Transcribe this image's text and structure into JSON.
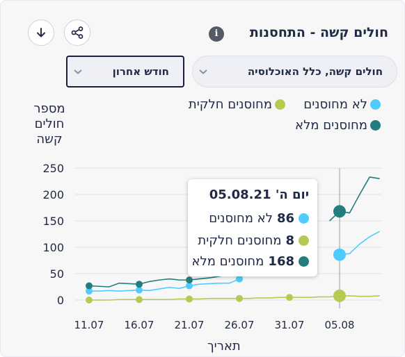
{
  "header": {
    "title": "חולים קשה - התחסנות",
    "info_glyph": "i"
  },
  "filters": {
    "population_label": "חולים קשה, כלל האוכלוסיה",
    "period_label": "חודש אחרון"
  },
  "colors": {
    "unvaccinated": "#50cbfd",
    "partial": "#b6ca51",
    "full": "#237d7d",
    "text": "#222b45",
    "grid": "#dfe1e8"
  },
  "tooltip": {
    "date": "יום ה' 05.08.21",
    "rows": [
      {
        "value": "86",
        "label": "לא מחוסנים"
      },
      {
        "value": "8",
        "label": "מחוסנים חלקית"
      },
      {
        "value": "168",
        "label": "מחוסנים מלא"
      }
    ]
  },
  "chart_data": {
    "type": "line",
    "xlabel": "תאריך",
    "ylabel": "מספר חולים קשה",
    "ylim": [
      0,
      250
    ],
    "yticks": [
      0,
      50,
      100,
      150,
      200,
      250
    ],
    "x": [
      "10.07",
      "11.07",
      "12.07",
      "13.07",
      "14.07",
      "15.07",
      "16.07",
      "17.07",
      "18.07",
      "19.07",
      "20.07",
      "21.07",
      "22.07",
      "23.07",
      "24.07",
      "25.07",
      "26.07",
      "27.07",
      "28.07",
      "29.07",
      "30.07",
      "31.07",
      "01.08",
      "02.08",
      "03.08",
      "04.08",
      "05.08",
      "06.08",
      "07.08",
      "08.08",
      "09.08"
    ],
    "xtick_labels": [
      "11.07",
      "16.07",
      "21.07",
      "26.07",
      "31.07",
      "05.08"
    ],
    "series": [
      {
        "name": "לא מחוסנים",
        "key": "unvaccinated",
        "values": [
          null,
          17,
          17,
          18,
          17,
          18,
          19,
          18,
          21,
          24,
          22,
          27,
          30,
          31,
          32,
          32,
          40,
          null,
          null,
          null,
          null,
          null,
          null,
          null,
          null,
          null,
          86,
          88,
          106,
          120,
          130
        ]
      },
      {
        "name": "מחוסנים חלקית",
        "key": "partial",
        "values": [
          null,
          0,
          0,
          0,
          1,
          1,
          1,
          1,
          1,
          1,
          2,
          2,
          2,
          3,
          3,
          3,
          3,
          3,
          4,
          4,
          5,
          5,
          5,
          5,
          6,
          6,
          8,
          8,
          7,
          7,
          8
        ]
      },
      {
        "name": "מחוסנים מלא",
        "key": "full",
        "values": [
          null,
          27,
          26,
          25,
          32,
          31,
          30,
          35,
          38,
          40,
          38,
          38,
          40,
          42,
          45,
          48,
          52,
          null,
          null,
          null,
          null,
          null,
          null,
          null,
          null,
          150,
          168,
          165,
          200,
          233,
          230
        ]
      }
    ],
    "highlight_x": "05.08",
    "legend": "top",
    "grid": true
  }
}
